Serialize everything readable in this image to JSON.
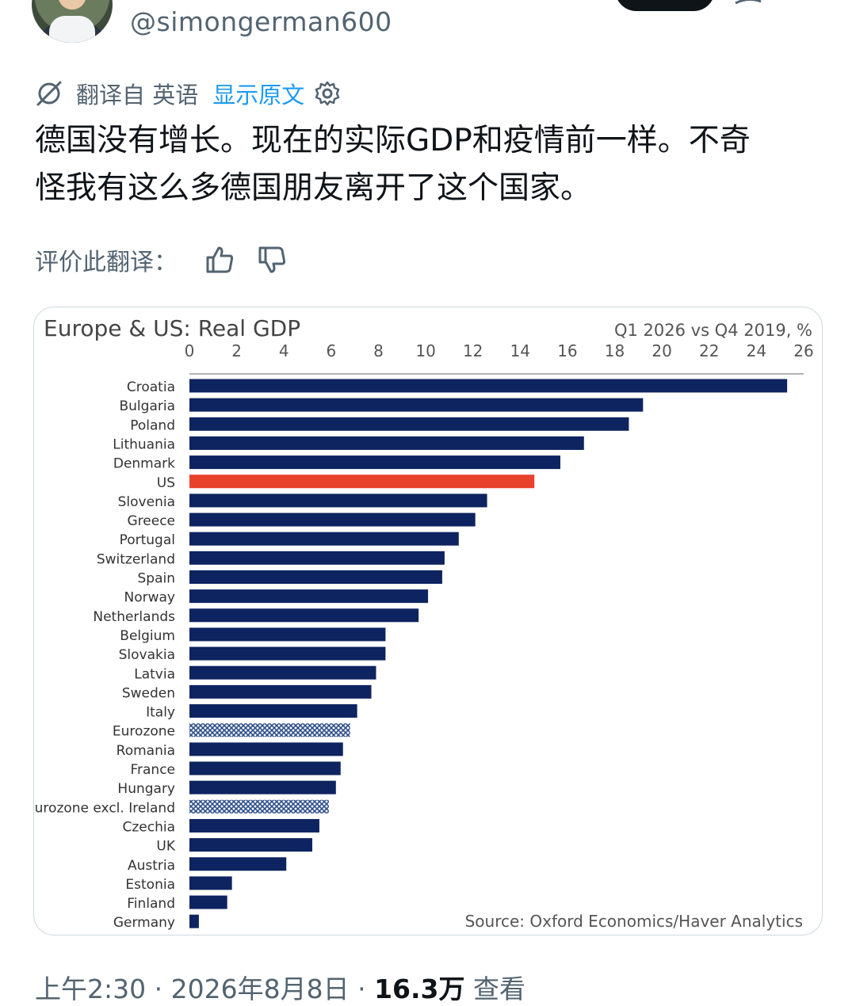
{
  "tweet": {
    "handle": "@simongerman600",
    "translation": {
      "translated_from": "翻译自 英语",
      "show_original": "显示原文"
    },
    "text_line1": "德国没有增长。现在的实际GDP和疫情前一样。不奇",
    "text_line2": "怪我有这么多德国朋友离开了这个国家。",
    "rate_label": "评价此翻译：",
    "time": "上午2:30",
    "date": "2026年8月8日",
    "separator": " · ",
    "views_count": "16.3万",
    "views_label": "查看"
  },
  "colors": {
    "bar_default": "#0e2460",
    "bar_highlight": "#e8412c",
    "bar_pattern": "#2f4f8a",
    "link": "#1d9bf0",
    "muted": "#536471"
  },
  "icons": {
    "translate": "translate-icon",
    "settings": "gear-icon",
    "thumbs_up": "thumbs-up-icon",
    "thumbs_down": "thumbs-down-icon"
  },
  "chart_data": {
    "type": "bar",
    "orientation": "horizontal",
    "title": "Europe & US: Real GDP",
    "subtitle": "Q1 2026 vs Q4 2019, %",
    "source": "Source: Oxford Economics/Haver Analytics",
    "xlim": [
      0,
      26
    ],
    "xticks": [
      0,
      2,
      4,
      6,
      8,
      10,
      12,
      14,
      16,
      18,
      20,
      22,
      24,
      26
    ],
    "axis_position": "top",
    "grid": false,
    "categories": [
      "Croatia",
      "Bulgaria",
      "Poland",
      "Lithuania",
      "Denmark",
      "US",
      "Slovenia",
      "Greece",
      "Portugal",
      "Switzerland",
      "Spain",
      "Norway",
      "Netherlands",
      "Belgium",
      "Slovakia",
      "Latvia",
      "Sweden",
      "Italy",
      "Eurozone",
      "Romania",
      "France",
      "Hungary",
      "Eurozone excl. Ireland",
      "Czechia",
      "UK",
      "Austria",
      "Estonia",
      "Finland",
      "Germany"
    ],
    "values": [
      25.3,
      19.2,
      18.6,
      16.7,
      15.7,
      14.6,
      12.6,
      12.1,
      11.4,
      10.8,
      10.7,
      10.1,
      9.7,
      8.3,
      8.3,
      7.9,
      7.7,
      7.1,
      6.8,
      6.5,
      6.4,
      6.2,
      5.9,
      5.5,
      5.2,
      4.1,
      1.8,
      1.6,
      0.4
    ],
    "highlight": [
      "US"
    ],
    "patterned": [
      "Eurozone",
      "Eurozone excl. Ireland"
    ]
  }
}
